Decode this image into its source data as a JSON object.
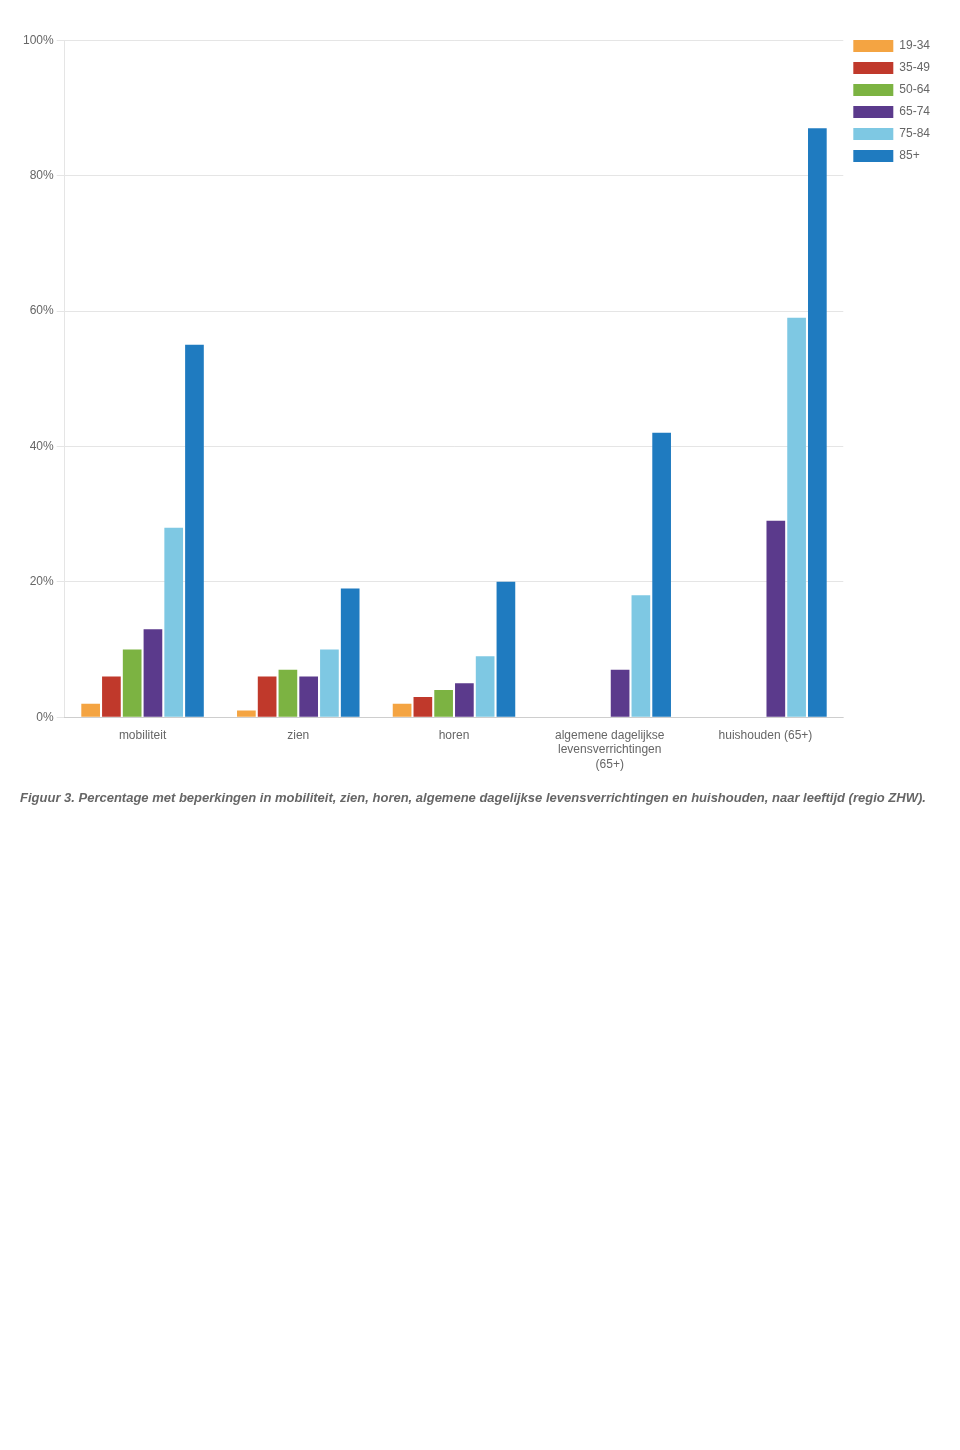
{
  "chart_data": {
    "type": "bar",
    "title": "Figuur 3. Percentage met beperkingen in mobiliteit, zien, horen, algemene dagelijkse levensverrichtingen en huishouden, naar leeftijd (regio ZHW).",
    "categories": [
      "mobiliteit",
      "zien",
      "horen",
      "algemene dagelijkse\nlevensverrichtingen\n(65+)",
      "huishouden (65+)"
    ],
    "series": [
      {
        "name": "19-34",
        "color": "#F4A442",
        "values": [
          2,
          1,
          2,
          0,
          0
        ]
      },
      {
        "name": "35-49",
        "color": "#C0392B",
        "values": [
          6,
          6,
          3,
          0,
          0
        ]
      },
      {
        "name": "50-64",
        "color": "#7CB342",
        "values": [
          10,
          7,
          4,
          0,
          0
        ]
      },
      {
        "name": "65-74",
        "color": "#5B3A8C",
        "values": [
          13,
          6,
          5,
          7,
          29
        ]
      },
      {
        "name": "75-84",
        "color": "#7EC8E3",
        "values": [
          28,
          10,
          9,
          18,
          59
        ]
      },
      {
        "name": "85+",
        "color": "#1F7BC0",
        "values": [
          55,
          19,
          20,
          42,
          87
        ]
      }
    ],
    "ylim": [
      0,
      100
    ],
    "yticks": [
      {
        "value": 0,
        "label": "0%"
      },
      {
        "value": 20,
        "label": "20%"
      },
      {
        "value": 40,
        "label": "40%"
      },
      {
        "value": 60,
        "label": "60%"
      },
      {
        "value": 80,
        "label": "80%"
      },
      {
        "value": 100,
        "label": "100%"
      }
    ],
    "grid": true,
    "legend": "right"
  }
}
